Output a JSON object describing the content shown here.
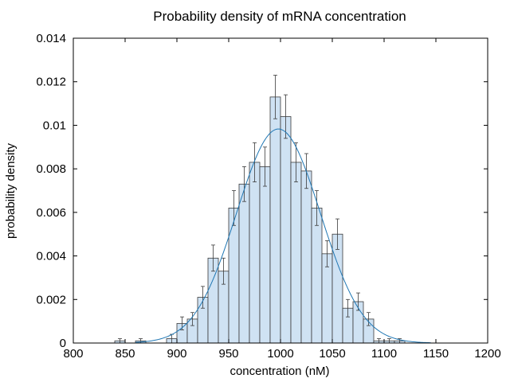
{
  "chart_data": {
    "type": "bar",
    "subtype": "histogram",
    "title": "Probability density of mRNA concentration",
    "xlabel": "concentration (nM)",
    "ylabel": "probability density",
    "xlim": [
      800,
      1200
    ],
    "ylim": [
      0,
      0.014
    ],
    "xticks": [
      800,
      850,
      900,
      950,
      1000,
      1050,
      1100,
      1150,
      1200
    ],
    "yticks": [
      0,
      0.002,
      0.004,
      0.006,
      0.008,
      0.01,
      0.012,
      0.014
    ],
    "ytick_labels": [
      "0",
      "0.002",
      "0.004",
      "0.006",
      "0.008",
      "0.01",
      "0.012",
      "0.014"
    ],
    "bin_width": 10,
    "bin_starts": [
      840,
      850,
      860,
      870,
      880,
      890,
      900,
      910,
      920,
      930,
      940,
      950,
      960,
      970,
      980,
      990,
      1000,
      1010,
      1020,
      1030,
      1040,
      1050,
      1060,
      1070,
      1080,
      1090,
      1100,
      1110,
      1120
    ],
    "density": [
      0.0001,
      0,
      0.0001,
      0,
      0,
      0.0002,
      0.0009,
      0.0011,
      0.0021,
      0.0039,
      0.0033,
      0.0062,
      0.0073,
      0.0083,
      0.0081,
      0.0113,
      0.0104,
      0.0083,
      0.0079,
      0.0062,
      0.0041,
      0.005,
      0.0016,
      0.0019,
      0.0011,
      0.0001,
      0.0001,
      0.0001,
      0
    ],
    "error": [
      0.0001,
      0,
      0.0001,
      0,
      0,
      0.0002,
      0.0003,
      0.0003,
      0.0005,
      0.0006,
      0.0006,
      0.0008,
      0.0008,
      0.0009,
      0.0009,
      0.001,
      0.001,
      0.0009,
      0.0008,
      0.0008,
      0.0006,
      0.0007,
      0.0004,
      0.0004,
      0.0003,
      0.0001,
      0.0001,
      0.0001,
      0
    ],
    "fit_curve": {
      "type": "gaussian",
      "mean": 998,
      "sigma": 40.5,
      "peak": 0.00983,
      "x_range": [
        860,
        1145
      ]
    },
    "colors": {
      "bar_fill": "#cfe2f3",
      "bar_edge": "#3a3a3a",
      "error_bar": "#3a3a3a",
      "fit_line": "#1f77b4"
    },
    "grid": false,
    "legend": "none"
  }
}
